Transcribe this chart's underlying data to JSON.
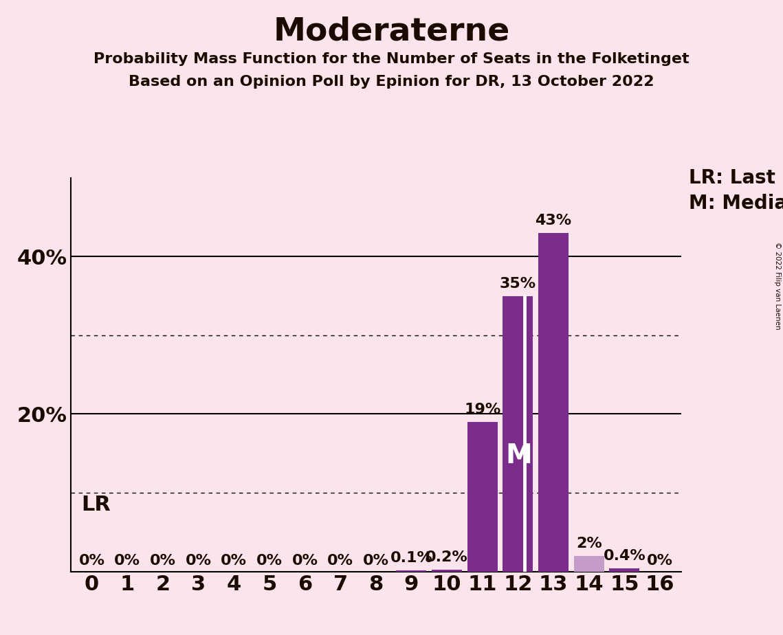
{
  "title": "Moderaterne",
  "subtitle1": "Probability Mass Function for the Number of Seats in the Folketinget",
  "subtitle2": "Based on an Opinion Poll by Epinion for DR, 13 October 2022",
  "copyright": "© 2022 Filip van Laenen",
  "categories": [
    0,
    1,
    2,
    3,
    4,
    5,
    6,
    7,
    8,
    9,
    10,
    11,
    12,
    13,
    14,
    15,
    16
  ],
  "values": [
    0.0,
    0.0,
    0.0,
    0.0,
    0.0,
    0.0,
    0.0,
    0.0,
    0.0,
    0.001,
    0.002,
    0.19,
    0.35,
    0.43,
    0.02,
    0.004,
    0.0
  ],
  "labels": [
    "0%",
    "0%",
    "0%",
    "0%",
    "0%",
    "0%",
    "0%",
    "0%",
    "0%",
    "0.1%",
    "0.2%",
    "19%",
    "35%",
    "43%",
    "2%",
    "0.4%",
    "0%"
  ],
  "bar_color": "#7b2d8b",
  "bar_color_light": "#c49bc9",
  "background_color": "#fce4ec",
  "text_color": "#1a0a00",
  "median_seat": 12,
  "last_result_seat": 13,
  "ylim": [
    0,
    0.5
  ],
  "legend_lr": "LR: Last Result",
  "legend_m": "M: Median",
  "lr_label": "LR",
  "m_label": "M",
  "title_fontsize": 34,
  "subtitle_fontsize": 16,
  "axis_tick_fontsize": 22,
  "bar_label_fontsize": 16,
  "legend_fontsize": 20,
  "lr_annotation_fontsize": 22,
  "m_annotation_fontsize": 28
}
